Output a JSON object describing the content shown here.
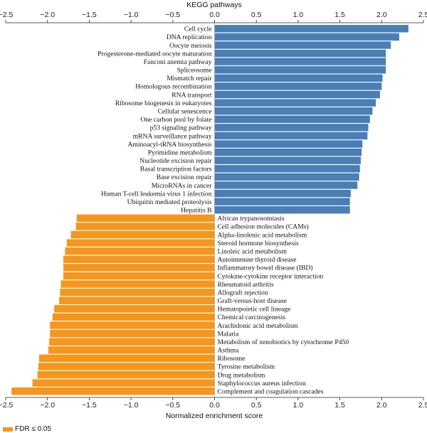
{
  "chart_data": {
    "type": "bar",
    "orientation": "horizontal",
    "title": "KEGG pathways",
    "xlabel": "Normalized enrichment score",
    "xlim": [
      -2.5,
      2.5
    ],
    "xticks": [
      "−2.5",
      "−2.0",
      "−1.5",
      "−1.0",
      "−0.5",
      "0.0",
      "0.5",
      "1.0",
      "1.5",
      "2.0",
      "2.5"
    ],
    "colors": {
      "up": "#4a7fb5",
      "down": "#f5961e"
    },
    "legend": {
      "position": "bottom-left",
      "label": "FDR ≤ 0.05",
      "color": "#f5961e"
    },
    "categories": [
      "Cell cycle",
      "DNA replication",
      "Oocyte meiosis",
      "Progesterone-mediated oocyte maturation",
      "Fanconi anemia pathway",
      "Spliceosome",
      "Mismatch repair",
      "Homologous recombination",
      "RNA transport",
      "Ribosome biogenesis in eukaryotes",
      "Cellular senescence",
      "One carbon pool by folate",
      "p53 signaling pathway",
      "mRNA surveillance pathway",
      "Aminoacyl-tRNA biosynthesis",
      "Pyrimidine metabolism",
      "Nucleotide excision repair",
      "Basal transcription factors",
      "Base excision repair",
      "MicroRNAs in cancer",
      "Human T-cell leukemia virus 1 infection",
      "Ubiquitin mediated proteolysis",
      "Hepatitis B",
      "African trypanosomiasis",
      "Cell adhesion molecules (CAMs)",
      "Alpha-linolenic acid metabolism",
      "Steroid hormone biosynthesis",
      "Linoleic acid metabolism",
      "Autoimmune thyroid disease",
      "Inflammatory bowel disease (IBD)",
      "Cytokine-cytokine receptor interaction",
      "Rheumatoid arthritis",
      "Allograft rejection",
      "Graft-versus-host disease",
      "Hematopoietic cell lineage",
      "Chemical carcinogenesis",
      "Arachidonic acid metabolism",
      "Malaria",
      "Metabolism of xenobiotics by cytochrome P450",
      "Asthma",
      "Ribosome",
      "Tyrosine metabolism",
      "Drug metabolism",
      "Staphylococcus aureus infection",
      "Complement and coagulation cascades"
    ],
    "values": [
      2.32,
      2.21,
      2.11,
      2.05,
      2.05,
      2.05,
      2.01,
      2.0,
      1.98,
      1.93,
      1.89,
      1.86,
      1.84,
      1.83,
      1.77,
      1.76,
      1.75,
      1.74,
      1.73,
      1.71,
      1.63,
      1.62,
      1.62,
      -1.65,
      -1.66,
      -1.72,
      -1.77,
      -1.79,
      -1.81,
      -1.81,
      -1.81,
      -1.84,
      -1.85,
      -1.86,
      -1.92,
      -1.94,
      -1.97,
      -1.97,
      -1.98,
      -1.99,
      -2.1,
      -2.11,
      -2.12,
      -2.18,
      -2.43
    ]
  }
}
